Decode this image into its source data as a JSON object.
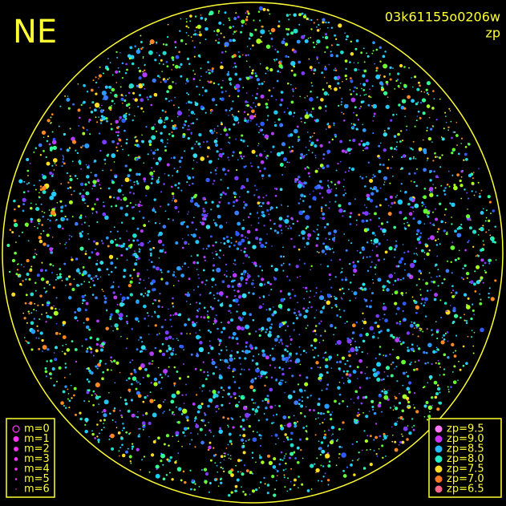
{
  "corner_label": "NE",
  "header": {
    "frame_id": "03k61155o0206w",
    "quantity": "zp"
  },
  "magnitude_legend": [
    "m=0",
    "m=1",
    "m=2",
    "m=3",
    "m=4",
    "m=5",
    "m=6"
  ],
  "zp_legend": [
    "zp=9.5",
    "zp=9.0",
    "zp=8.5",
    "zp=8.0",
    "zp=7.5",
    "zp=7.0",
    "zp=6.5"
  ]
}
